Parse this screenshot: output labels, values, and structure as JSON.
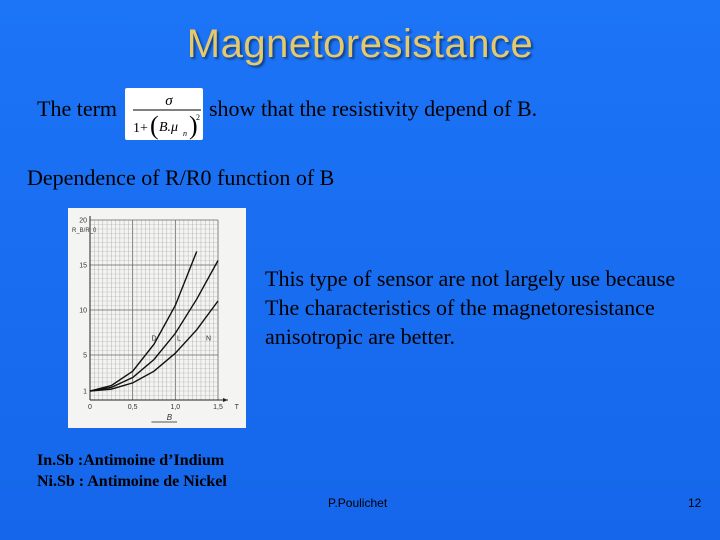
{
  "slide": {
    "title": "Magnetoresistance",
    "term_label": "The term",
    "term_rest": "show that the resistivity depend of B.",
    "dependence": "Dependence of R/R0 function of B",
    "description_lines": [
      "This type of sensor are not largely use because",
      "The characteristics of the magnetoresistance",
      "anisotropic are better."
    ],
    "legend_lines": [
      "In.Sb :Antimoine d’Indium",
      "Ni.Sb : Antimoine de Nickel"
    ],
    "author": "P.Poulichet",
    "page_number": "12",
    "title_color": "#e6c96a",
    "background_color": "#1a6ff0"
  },
  "formula": {
    "numerator": "σ",
    "denominator_one": "1+",
    "denominator_inner": "B.μ",
    "denominator_sub": "n",
    "exponent": "2"
  },
  "chart_data": {
    "type": "line",
    "ylabel": "R_B/R_0",
    "xlabel": "B",
    "x_ticks": [
      "0",
      "0,5",
      "1,0",
      "1,5",
      "T"
    ],
    "y_ticks": [
      "1",
      "5",
      "10",
      "15",
      "20"
    ],
    "curve_labels": [
      "D",
      "L",
      "N"
    ],
    "xlim": [
      0,
      1.5
    ],
    "ylim": [
      0,
      20
    ],
    "series": [
      {
        "name": "D",
        "x": [
          0,
          0.25,
          0.5,
          0.75,
          1.0,
          1.25
        ],
        "y": [
          1,
          1.6,
          3.2,
          6.2,
          10.5,
          16.5
        ]
      },
      {
        "name": "L",
        "x": [
          0,
          0.25,
          0.5,
          0.75,
          1.0,
          1.25,
          1.5
        ],
        "y": [
          1,
          1.4,
          2.5,
          4.5,
          7.4,
          11.2,
          15.5
        ]
      },
      {
        "name": "N",
        "x": [
          0,
          0.25,
          0.5,
          0.75,
          1.0,
          1.25,
          1.5
        ],
        "y": [
          1,
          1.2,
          1.9,
          3.2,
          5.2,
          7.8,
          11.0
        ]
      }
    ]
  }
}
